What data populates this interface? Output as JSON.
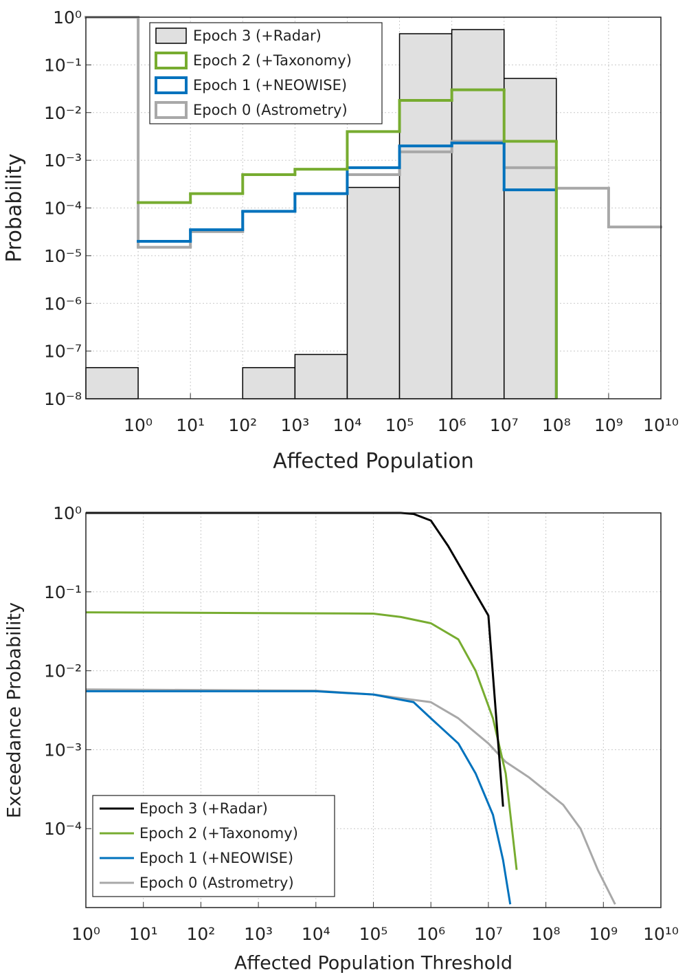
{
  "chart_data": [
    {
      "type": "histogram",
      "xlabel": "Affected Population",
      "ylabel": "Probability",
      "xscale": "log",
      "yscale": "log",
      "grid": true,
      "legend": "upper left",
      "xlim": [
        0.1,
        10000000000
      ],
      "ylim": [
        1e-08,
        1
      ],
      "xticks": [
        {
          "value": 1,
          "label": "10⁰"
        },
        {
          "value": 10,
          "label": "10¹"
        },
        {
          "value": 100,
          "label": "10²"
        },
        {
          "value": 1000,
          "label": "10³"
        },
        {
          "value": 10000,
          "label": "10⁴"
        },
        {
          "value": 100000,
          "label": "10⁵"
        },
        {
          "value": 1000000,
          "label": "10⁶"
        },
        {
          "value": 10000000,
          "label": "10⁷"
        },
        {
          "value": 100000000,
          "label": "10⁸"
        },
        {
          "value": 1000000000,
          "label": "10⁹"
        },
        {
          "value": 10000000000,
          "label": "10¹⁰"
        }
      ],
      "yticks": [
        {
          "value": 1e-08,
          "label": "10⁻⁸"
        },
        {
          "value": 1e-07,
          "label": "10⁻⁷"
        },
        {
          "value": 1e-06,
          "label": "10⁻⁶"
        },
        {
          "value": 1e-05,
          "label": "10⁻⁵"
        },
        {
          "value": 0.0001,
          "label": "10⁻⁴"
        },
        {
          "value": 0.001,
          "label": "10⁻³"
        },
        {
          "value": 0.01,
          "label": "10⁻²"
        },
        {
          "value": 0.1,
          "label": "10⁻¹"
        },
        {
          "value": 1,
          "label": "10⁰"
        }
      ],
      "bins": [
        0.1,
        1,
        10,
        100,
        1000,
        10000,
        100000,
        1000000,
        10000000,
        100000000,
        1000000000,
        10000000000
      ],
      "series": [
        {
          "name": "Epoch 3 (+Radar)",
          "color": "#000000",
          "fill": "#e0e0e0",
          "values": [
            4.5e-08,
            null,
            null,
            4.5e-08,
            8.5e-08,
            0.00027,
            0.45,
            0.55,
            0.052,
            null,
            null
          ]
        },
        {
          "name": "Epoch 2 (+Taxonomy)",
          "color": "#77ac30",
          "values": [
            null,
            0.00013,
            0.0002,
            0.0005,
            0.00065,
            0.004,
            0.018,
            0.03,
            0.0025,
            null,
            null
          ]
        },
        {
          "name": "Epoch 1 (+NEOWISE)",
          "color": "#0072bd",
          "values": [
            null,
            2e-05,
            3.5e-05,
            8.5e-05,
            0.0002,
            0.0007,
            0.002,
            0.0023,
            0.00024,
            null,
            null
          ]
        },
        {
          "name": "Epoch 0 (Astrometry)",
          "color": "#a8a8a8",
          "values": [
            1,
            1.5e-05,
            3.2e-05,
            8.5e-05,
            0.0002,
            0.0005,
            0.0015,
            0.0025,
            0.0007,
            0.00026,
            4e-05
          ]
        }
      ]
    },
    {
      "type": "line",
      "xlabel": "Affected Population Threshold",
      "ylabel": "Exceedance Probability",
      "xscale": "log",
      "yscale": "log",
      "grid": true,
      "legend": "lower left",
      "xlim": [
        1,
        10000000000
      ],
      "ylim": [
        1e-05,
        1
      ],
      "xticks": [
        {
          "value": 1,
          "label": "10⁰"
        },
        {
          "value": 10,
          "label": "10¹"
        },
        {
          "value": 100,
          "label": "10²"
        },
        {
          "value": 1000,
          "label": "10³"
        },
        {
          "value": 10000,
          "label": "10⁴"
        },
        {
          "value": 100000,
          "label": "10⁵"
        },
        {
          "value": 1000000,
          "label": "10⁶"
        },
        {
          "value": 10000000,
          "label": "10⁷"
        },
        {
          "value": 100000000,
          "label": "10⁸"
        },
        {
          "value": 1000000000,
          "label": "10⁹"
        },
        {
          "value": 10000000000,
          "label": "10¹⁰"
        }
      ],
      "yticks": [
        {
          "value": 0.0001,
          "label": "10⁻⁴"
        },
        {
          "value": 0.001,
          "label": "10⁻³"
        },
        {
          "value": 0.01,
          "label": "10⁻²"
        },
        {
          "value": 0.1,
          "label": "10⁻¹"
        },
        {
          "value": 1,
          "label": "10⁰"
        }
      ],
      "series": [
        {
          "name": "Epoch 3 (+Radar)",
          "color": "#000000",
          "x": [
            1,
            100000,
            300000,
            500000,
            1000000,
            2000000,
            5000000,
            10000000,
            18000000
          ],
          "values": [
            1,
            1,
            1,
            0.97,
            0.8,
            0.38,
            0.12,
            0.05,
            0.00019
          ]
        },
        {
          "name": "Epoch 2 (+Taxonomy)",
          "color": "#77ac30",
          "x": [
            1,
            100000,
            300000,
            1000000,
            3000000,
            6000000,
            12000000,
            20000000,
            25000000,
            31000000
          ],
          "values": [
            0.055,
            0.053,
            0.048,
            0.04,
            0.025,
            0.01,
            0.0025,
            0.0005,
            0.00012,
            3e-05
          ]
        },
        {
          "name": "Epoch 1 (+NEOWISE)",
          "color": "#0072bd",
          "x": [
            1,
            10000,
            100000,
            500000,
            1000000,
            3000000,
            6000000,
            12000000,
            18000000,
            24000000
          ],
          "values": [
            0.0055,
            0.0055,
            0.005,
            0.004,
            0.0025,
            0.0012,
            0.0005,
            0.00015,
            4e-05,
            1.1e-05
          ]
        },
        {
          "name": "Epoch 0 (Astrometry)",
          "color": "#a8a8a8",
          "x": [
            1,
            10000,
            100000,
            1000000,
            3000000,
            10000000,
            20000000,
            50000000,
            100000000,
            200000000,
            400000000,
            800000000,
            1600000000
          ],
          "values": [
            0.0058,
            0.0056,
            0.005,
            0.004,
            0.0025,
            0.0012,
            0.0007,
            0.00045,
            0.0003,
            0.0002,
            0.0001,
            3e-05,
            1.1e-05
          ]
        }
      ]
    }
  ]
}
